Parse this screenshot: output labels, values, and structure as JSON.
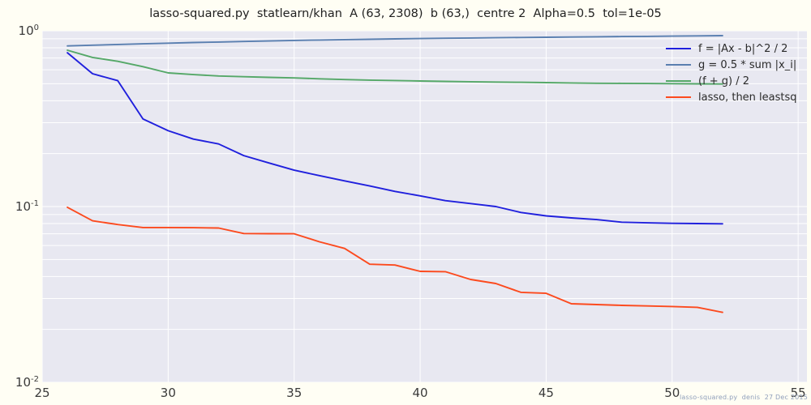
{
  "title": "lasso-squared.py  statlearn/khan  A (63, 2308)  b (63,)  centre 2  Alpha=0.5  tol=1e-05",
  "credit": "lasso-squared.py  denis  27 Dec 2015",
  "colors": {
    "figure_bg": "#fffef4",
    "axes_bg": "#e8e8f1",
    "grid": "#ffffff",
    "tick_text": "#3a3a3a",
    "title_text": "#1f1f1f",
    "credit_text": "#8f9fbb"
  },
  "chart_data": {
    "type": "line",
    "title": "lasso-squared.py  statlearn/khan  A (63, 2308)  b (63,)  centre 2  Alpha=0.5  tol=1e-05",
    "xlabel": "",
    "ylabel": "",
    "y_scale": "log",
    "xlim": [
      25,
      55.35
    ],
    "ylim": [
      0.01,
      1.0
    ],
    "grid": true,
    "legend_position": "upper right",
    "x_ticks": [
      25,
      30,
      35,
      40,
      45,
      50,
      55
    ],
    "y_ticks": [
      {
        "base": "10",
        "exp": "0",
        "value": 1.0
      },
      {
        "base": "10",
        "exp": "-1",
        "value": 0.1
      },
      {
        "base": "10",
        "exp": "-2",
        "value": 0.01
      }
    ],
    "y_gridlines": [
      1.0,
      0.9,
      0.8,
      0.7,
      0.6,
      0.5,
      0.4,
      0.3,
      0.2,
      0.1,
      0.09,
      0.08,
      0.07,
      0.06,
      0.05,
      0.04,
      0.03,
      0.02,
      0.01
    ],
    "x": [
      26,
      27,
      28,
      29,
      30,
      31,
      32,
      33,
      34,
      35,
      36,
      37,
      38,
      39,
      40,
      41,
      42,
      43,
      44,
      45,
      46,
      47,
      48,
      49,
      50,
      51,
      52
    ],
    "series": [
      {
        "name": "f = |Ax - b|^2 / 2",
        "color": "#2020dd",
        "values": [
          0.75,
          0.57,
          0.52,
          0.315,
          0.27,
          0.242,
          0.227,
          0.195,
          0.177,
          0.161,
          0.15,
          0.14,
          0.131,
          0.122,
          0.115,
          0.108,
          0.104,
          0.1,
          0.0925,
          0.0885,
          0.0862,
          0.0843,
          0.0815,
          0.0808,
          0.0803,
          0.08,
          0.0798
        ]
      },
      {
        "name": "g = 0.5 * sum |x_i|",
        "color": "#5a7fb0",
        "values": [
          0.82,
          0.828,
          0.836,
          0.843,
          0.85,
          0.857,
          0.863,
          0.869,
          0.875,
          0.881,
          0.886,
          0.891,
          0.895,
          0.899,
          0.903,
          0.907,
          0.91,
          0.913,
          0.916,
          0.919,
          0.922,
          0.924,
          0.927,
          0.929,
          0.932,
          0.935,
          0.938
        ]
      },
      {
        "name": "(f + g) / 2",
        "color": "#55a868",
        "values": [
          0.775,
          0.705,
          0.67,
          0.625,
          0.576,
          0.563,
          0.553,
          0.548,
          0.543,
          0.539,
          0.533,
          0.528,
          0.524,
          0.521,
          0.518,
          0.515,
          0.513,
          0.511,
          0.509,
          0.507,
          0.505,
          0.503,
          0.502,
          0.501,
          0.5,
          0.499,
          0.498
        ]
      },
      {
        "name": "lasso, then leastsq",
        "color": "#fc4a1e",
        "values": [
          0.099,
          0.083,
          0.079,
          0.076,
          0.076,
          0.0758,
          0.0755,
          0.0702,
          0.0701,
          0.07,
          0.063,
          0.0578,
          0.047,
          0.0465,
          0.0428,
          0.0426,
          0.0385,
          0.0365,
          0.0325,
          0.0321,
          0.028,
          0.0277,
          0.0274,
          0.0272,
          0.027,
          0.0267,
          0.025
        ]
      }
    ]
  }
}
